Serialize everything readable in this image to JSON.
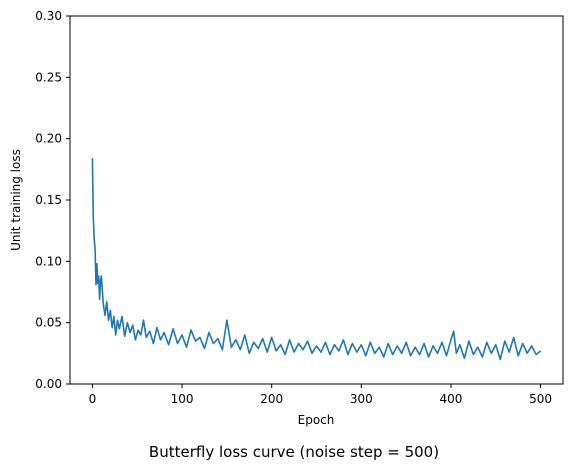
{
  "chart_data": {
    "type": "line",
    "title": "Butterfly loss curve (noise step = 500)",
    "xlabel": "Epoch",
    "ylabel": "Unit training loss",
    "xlim": [
      -25,
      525
    ],
    "ylim": [
      0,
      0.3
    ],
    "xticks": [
      "0",
      "100",
      "200",
      "300",
      "400",
      "500"
    ],
    "yticks": [
      "0.00",
      "0.05",
      "0.10",
      "0.15",
      "0.20",
      "0.25",
      "0.30"
    ],
    "grid": false,
    "line_color": "#1f77b4",
    "series": [
      {
        "x": [
          0,
          1,
          2,
          3,
          4,
          5,
          6,
          7,
          8,
          9,
          10,
          12,
          14,
          16,
          18,
          20,
          22,
          24,
          26,
          28,
          30,
          33,
          36,
          39,
          42,
          45,
          48,
          51,
          54,
          57,
          60,
          64,
          68,
          72,
          76,
          80,
          85,
          90,
          95,
          100,
          105,
          110,
          115,
          120,
          125,
          130,
          135,
          140,
          145,
          150,
          155,
          160,
          165,
          170,
          175,
          180,
          185,
          190,
          195,
          200,
          205,
          210,
          215,
          220,
          225,
          230,
          235,
          240,
          245,
          250,
          255,
          260,
          265,
          270,
          275,
          280,
          285,
          290,
          295,
          300,
          305,
          310,
          315,
          320,
          325,
          330,
          335,
          340,
          345,
          350,
          355,
          360,
          365,
          370,
          375,
          380,
          385,
          390,
          395,
          400,
          403,
          406,
          410,
          415,
          420,
          425,
          430,
          435,
          440,
          445,
          450,
          455,
          460,
          465,
          470,
          475,
          480,
          485,
          490,
          495,
          500
        ],
        "y": [
          0.184,
          0.135,
          0.118,
          0.11,
          0.081,
          0.098,
          0.082,
          0.088,
          0.069,
          0.084,
          0.088,
          0.066,
          0.056,
          0.067,
          0.052,
          0.06,
          0.046,
          0.055,
          0.04,
          0.052,
          0.045,
          0.055,
          0.039,
          0.05,
          0.042,
          0.048,
          0.036,
          0.044,
          0.04,
          0.052,
          0.038,
          0.043,
          0.033,
          0.046,
          0.036,
          0.042,
          0.032,
          0.045,
          0.033,
          0.04,
          0.03,
          0.044,
          0.035,
          0.038,
          0.029,
          0.042,
          0.033,
          0.037,
          0.028,
          0.052,
          0.03,
          0.036,
          0.028,
          0.04,
          0.025,
          0.034,
          0.029,
          0.037,
          0.026,
          0.038,
          0.027,
          0.032,
          0.024,
          0.036,
          0.026,
          0.033,
          0.028,
          0.035,
          0.025,
          0.031,
          0.026,
          0.034,
          0.024,
          0.032,
          0.027,
          0.036,
          0.024,
          0.033,
          0.026,
          0.032,
          0.023,
          0.034,
          0.025,
          0.03,
          0.022,
          0.033,
          0.024,
          0.031,
          0.025,
          0.034,
          0.023,
          0.03,
          0.024,
          0.033,
          0.022,
          0.031,
          0.025,
          0.034,
          0.023,
          0.036,
          0.043,
          0.025,
          0.032,
          0.021,
          0.035,
          0.024,
          0.03,
          0.022,
          0.034,
          0.025,
          0.032,
          0.02,
          0.035,
          0.026,
          0.038,
          0.023,
          0.033,
          0.025,
          0.031,
          0.024,
          0.027
        ]
      }
    ]
  }
}
